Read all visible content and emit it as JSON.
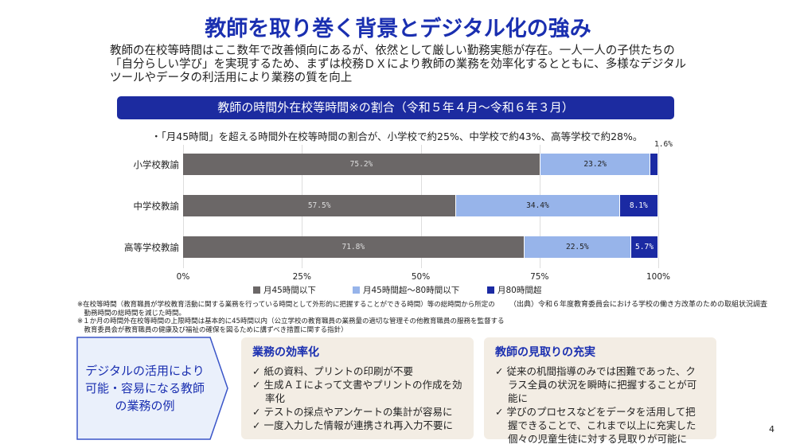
{
  "title": "教師を取り巻く背景とデジタル化の強み",
  "intro": "教師の在校等時間はここ数年で改善傾向にあるが、依然として厳しい勤務実態が存在。一人一人の子供たちの「自分らしい学び」を実現するため、まずは校務ＤＸにより教師の業務を効率化するとともに、多様なデジタルツールやデータの利活用により業務の質を向上",
  "banner": "教師の時間外在校等時間※の割合（令和５年４月～令和６年３月）",
  "note": "・「月45時間」を超える時間外在校等時間の割合が、小学校で約25%、中学校で約43%、高等学校で約28%。",
  "chart_data": {
    "type": "bar",
    "stacked": true,
    "orientation": "horizontal",
    "categories": [
      "小学校教諭",
      "中学校教諭",
      "高等学校教諭"
    ],
    "series": [
      {
        "name": "月45時間以下",
        "color": "#6b6767",
        "values": [
          75.2,
          57.5,
          71.8
        ],
        "labels": [
          "75.2%",
          "57.5%",
          "71.8%"
        ]
      },
      {
        "name": "月45時間超～80時間以下",
        "color": "#97b4ea",
        "values": [
          23.2,
          34.4,
          22.5
        ],
        "labels": [
          "23.2%",
          "34.4%",
          "22.5%"
        ]
      },
      {
        "name": "月80時間超",
        "color": "#1b2aa3",
        "values": [
          1.6,
          8.1,
          5.7
        ],
        "labels": [
          "1.6%",
          "8.1%",
          "5.7%"
        ]
      }
    ],
    "xticks": [
      "0%",
      "25%",
      "50%",
      "75%",
      "100%"
    ],
    "xlim": [
      0,
      100
    ],
    "legend": "bottom"
  },
  "footnotes": [
    "※在校等時間（教育職員が学校教育活動に関する業務を行っている時間として外形的に把握することができる時間）等の総時間から所定の",
    "　勤務時間の総時間を減じた時間。",
    "※１か月の時間外在校等時間の上限時間は基本的に45時間以内（公立学校の教育職員の業務量の適切な管理その他教育職員の服務を監督する",
    "　教育委員会が教育職員の健康及び福祉の確保を図るために講ずべき措置に関する指針）"
  ],
  "source": "（出典）令和６年度教育委員会における学校の働き方改革のための取組状況調査",
  "callout": "デジタルの活用により可能・容易になる教師の業務の例",
  "boxes": [
    {
      "title": "業務の効率化",
      "items": [
        "✓ 紙の資料、プリントの印刷が不要",
        "✓ 生成ＡＩによって文書やプリントの作成を効率化",
        "✓ テストの採点やアンケートの集計が容易に",
        "✓ 一度入力した情報が連携され再入力不要に"
      ]
    },
    {
      "title": "教師の見取りの充実",
      "items": [
        "✓ 従来の机間指導のみでは困難であった、クラス全員の状況を瞬時に把握することが可能に",
        "✓ 学びのプロセスなどをデータを活用して把握できることで、これまで以上に充実した個々の児童生徒に対する見取りが可能に"
      ]
    }
  ],
  "page": "4"
}
